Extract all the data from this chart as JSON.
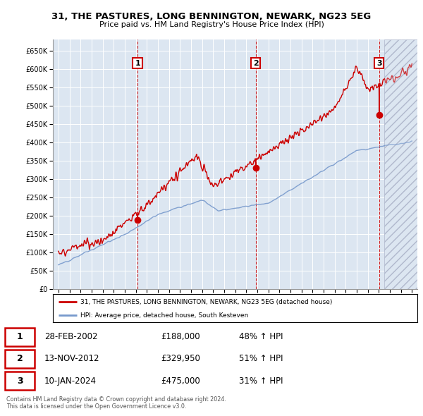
{
  "title_line1": "31, THE PASTURES, LONG BENNINGTON, NEWARK, NG23 5EG",
  "title_line2": "Price paid vs. HM Land Registry's House Price Index (HPI)",
  "bg_color": "#dce6f1",
  "red_color": "#cc0000",
  "blue_color": "#7799cc",
  "sale_dates": [
    2002.162,
    2012.866,
    2024.03
  ],
  "sale_prices": [
    188000,
    329950,
    475000
  ],
  "sale_labels": [
    "1",
    "2",
    "3"
  ],
  "legend_line1": "31, THE PASTURES, LONG BENNINGTON, NEWARK, NG23 5EG (detached house)",
  "legend_line2": "HPI: Average price, detached house, South Kesteven",
  "table_data": [
    [
      "1",
      "28-FEB-2002",
      "£188,000",
      "48% ↑ HPI"
    ],
    [
      "2",
      "13-NOV-2012",
      "£329,950",
      "51% ↑ HPI"
    ],
    [
      "3",
      "10-JAN-2024",
      "£475,000",
      "31% ↑ HPI"
    ]
  ],
  "footer": "Contains HM Land Registry data © Crown copyright and database right 2024.\nThis data is licensed under the Open Government Licence v3.0.",
  "ylim": [
    0,
    680000
  ],
  "xlim_start": 1994.5,
  "xlim_end": 2027.5,
  "future_start": 2024.5
}
